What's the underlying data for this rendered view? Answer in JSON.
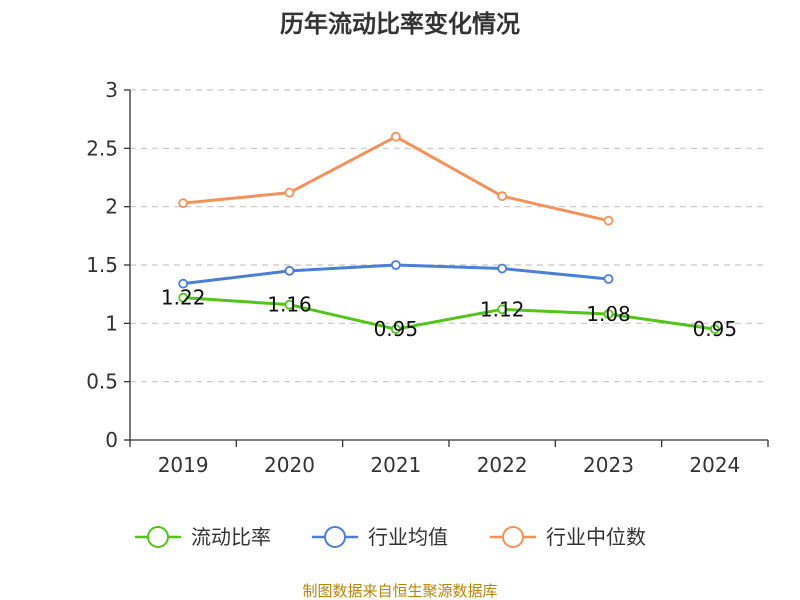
{
  "chart_data": {
    "type": "line",
    "title": "历年流动比率变化情况",
    "categories": [
      "2019",
      "2020",
      "2021",
      "2022",
      "2023",
      "2024"
    ],
    "ylim": [
      0,
      3
    ],
    "yticks": [
      "0",
      "0.5",
      "1",
      "1.5",
      "2",
      "2.5",
      "3"
    ],
    "ytick_values": [
      0,
      0.5,
      1,
      1.5,
      2,
      2.5,
      3
    ],
    "grid": true,
    "legend_position": "bottom",
    "series": [
      {
        "name": "流动比率",
        "color": "#52c41a",
        "values": [
          1.22,
          1.16,
          0.95,
          1.12,
          1.08,
          0.95
        ],
        "labels": [
          "1.22",
          "1.16",
          "0.95",
          "1.12",
          "1.08",
          "0.95"
        ]
      },
      {
        "name": "行业均值",
        "color": "#4a7fd6",
        "values": [
          1.34,
          1.45,
          1.5,
          1.47,
          1.38,
          null
        ],
        "labels": []
      },
      {
        "name": "行业中位数",
        "color": "#f5925a",
        "values": [
          2.03,
          2.12,
          2.6,
          2.09,
          1.88,
          null
        ],
        "labels": []
      }
    ]
  },
  "source_text": "制图数据来自恒生聚源数据库"
}
